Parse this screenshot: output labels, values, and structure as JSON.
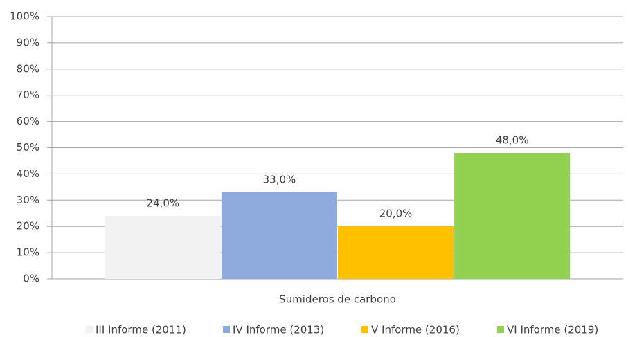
{
  "chart_data": {
    "type": "bar",
    "categories": [
      "Sumideros de carbono"
    ],
    "series": [
      {
        "name": "III Informe (2011)",
        "color": "#f2f2f2",
        "values": [
          24
        ],
        "value_labels": [
          "24,0%"
        ]
      },
      {
        "name": "IV Informe (2013)",
        "color": "#8faadc",
        "values": [
          33
        ],
        "value_labels": [
          "33,0%"
        ]
      },
      {
        "name": "V Informe (2016)",
        "color": "#ffc000",
        "values": [
          20
        ],
        "value_labels": [
          "20,0%"
        ]
      },
      {
        "name": "VI Informe (2019)",
        "color": "#92d050",
        "values": [
          48
        ],
        "value_labels": [
          "48,0%"
        ]
      }
    ],
    "ylim": [
      0,
      100
    ],
    "yticks": [
      {
        "value": 0,
        "label": "0%"
      },
      {
        "value": 10,
        "label": "10%"
      },
      {
        "value": 20,
        "label": "20%"
      },
      {
        "value": 30,
        "label": "30%"
      },
      {
        "value": 40,
        "label": "40%"
      },
      {
        "value": 50,
        "label": "50%"
      },
      {
        "value": 60,
        "label": "60%"
      },
      {
        "value": 70,
        "label": "70%"
      },
      {
        "value": 80,
        "label": "80%"
      },
      {
        "value": 90,
        "label": "90%"
      },
      {
        "value": 100,
        "label": "100%"
      }
    ],
    "grid": true,
    "legend": "bottom"
  }
}
